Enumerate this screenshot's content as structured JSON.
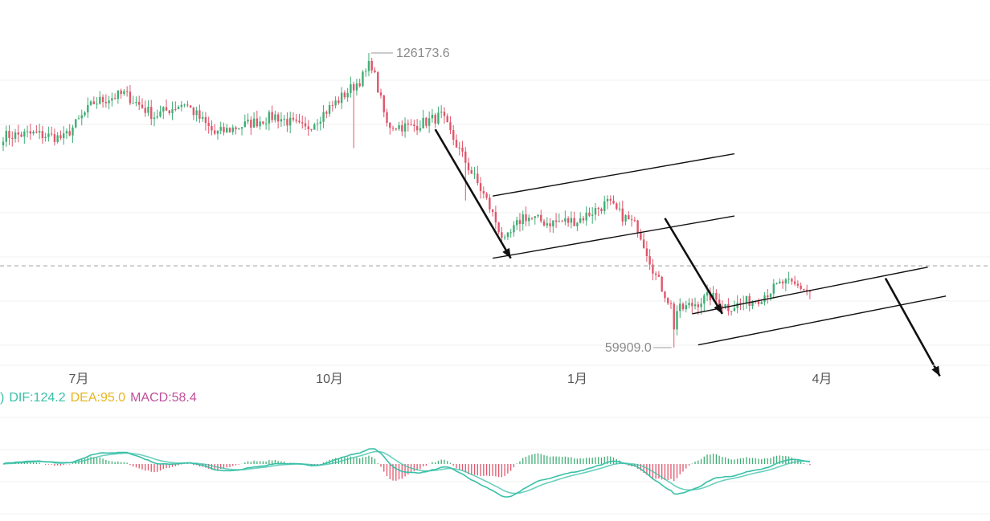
{
  "chart_data": {
    "type": "candlestick",
    "colors": {
      "up": "#3fae74",
      "down": "#e0566b",
      "dif": "#39c0a8",
      "dea": "#e8b41e",
      "macd": "#c0509a",
      "grid": "#f2f2f2",
      "axis_text": "#555555",
      "annotation": "#8a8a8a"
    },
    "x_axis": {
      "tick_labels": [
        "7月",
        "10月",
        "1月",
        "4月"
      ]
    },
    "price": {
      "high_label": "126173.6",
      "low_label": "59909.0",
      "high_value": 126173.6,
      "low_value": 59909.0,
      "current_value": 78300,
      "anchors": [
        [
          0,
          107500
        ],
        [
          10,
          108000
        ],
        [
          20,
          107000
        ],
        [
          30,
          115000
        ],
        [
          40,
          117000
        ],
        [
          50,
          112000
        ],
        [
          60,
          115000
        ],
        [
          70,
          108000
        ],
        [
          80,
          110000
        ],
        [
          90,
          112000
        ],
        [
          100,
          109000
        ],
        [
          110,
          115000
        ],
        [
          118,
          120000
        ],
        [
          122,
          123500
        ],
        [
          127,
          110000
        ],
        [
          135,
          109500
        ],
        [
          145,
          112000
        ],
        [
          152,
          103000
        ],
        [
          160,
          93000
        ],
        [
          166,
          83500
        ],
        [
          172,
          89500
        ],
        [
          180,
          88000
        ],
        [
          190,
          88500
        ],
        [
          200,
          92500
        ],
        [
          204,
          90000
        ],
        [
          210,
          87000
        ],
        [
          216,
          76000
        ],
        [
          222,
          68000
        ],
        [
          228,
          69500
        ],
        [
          234,
          71500
        ],
        [
          240,
          69000
        ],
        [
          250,
          71000
        ],
        [
          258,
          74500
        ],
        [
          264,
          73500
        ],
        [
          267,
          72500
        ]
      ]
    },
    "trend_channels": [
      {
        "name": "channel-1",
        "upper": [
          [
            162,
            94000
          ],
          [
            242,
            103500
          ]
        ],
        "lower": [
          [
            162,
            80000
          ],
          [
            242,
            89500
          ]
        ]
      },
      {
        "name": "channel-2",
        "upper": [
          [
            228,
            67500
          ],
          [
            306,
            78000
          ]
        ],
        "lower": [
          [
            230,
            60500
          ],
          [
            312,
            71500
          ]
        ]
      }
    ],
    "trend_arrows": [
      {
        "from": [
          143,
          109000
        ],
        "to": [
          168,
          80000
        ]
      },
      {
        "from": [
          219,
          89000
        ],
        "to": [
          238,
          67500
        ]
      },
      {
        "from": [
          292,
          75500
        ],
        "to": [
          310,
          53500
        ]
      }
    ],
    "macd": {
      "dif_label": "DIF:124.2",
      "dea_label": "DEA:95.0",
      "macd_label": "MACD:58.4",
      "dif_value": 124.2,
      "dea_value": 95.0,
      "macd_value": 58.4
    }
  }
}
